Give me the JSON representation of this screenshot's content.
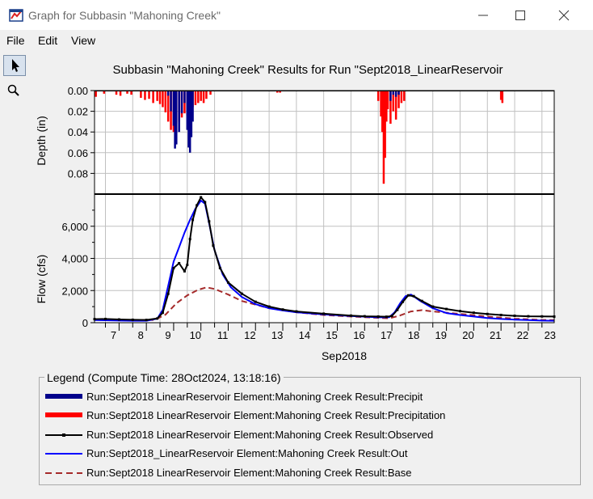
{
  "window": {
    "title": "Graph for Subbasin \"Mahoning Creek\""
  },
  "menu": {
    "items": [
      "File",
      "Edit",
      "View"
    ]
  },
  "toolbar": {
    "tools": [
      {
        "icon": "pointer-arrow-icon",
        "selected": true
      },
      {
        "icon": "zoom-magnifier-icon",
        "selected": false
      }
    ]
  },
  "chart_data": {
    "title": "Subbasin \"Mahoning Creek\" Results for Run \"Sept2018_LinearReservoir",
    "xlabel": "Sep2018",
    "x_ticks": [
      "7",
      "8",
      "9",
      "10",
      "11",
      "12",
      "13",
      "14",
      "15",
      "16",
      "17",
      "18",
      "19",
      "20",
      "21",
      "22",
      "23"
    ],
    "x_range": [
      6.6,
      23.45
    ],
    "grid": true,
    "colors": {
      "precip_excess": "#00008b",
      "precipitation": "#ff0000",
      "observed": "#000000",
      "outflow": "#0000ff",
      "baseflow": "#a52a2a"
    },
    "panels": [
      {
        "name": "depth",
        "type": "bar",
        "ylabel": "Depth (in)",
        "inverted": true,
        "ylim": [
          0,
          0.1
        ],
        "y_ticks": [
          "0.00",
          "0.02",
          "0.04",
          "0.06",
          "0.08"
        ],
        "y_tick_values": [
          0,
          0.02,
          0.04,
          0.06,
          0.08
        ],
        "bar_width_days": 0.0417,
        "series": [
          {
            "key": "precipitation",
            "x": [
              6.65,
              6.95,
              7.4,
              7.55,
              7.8,
              7.95,
              8.3,
              8.45,
              8.6,
              8.75,
              8.9,
              9.0,
              9.1,
              9.2,
              9.3,
              9.4,
              9.5,
              9.6,
              9.7,
              9.8,
              9.9,
              10.0,
              10.1,
              10.2,
              10.3,
              10.4,
              10.5,
              10.6,
              10.7,
              10.85,
              13.3,
              13.4,
              17.0,
              17.1,
              17.15,
              17.2,
              17.25,
              17.3,
              17.35,
              17.45,
              17.55,
              17.65,
              17.75,
              17.85,
              17.95,
              21.5,
              21.55
            ],
            "values": [
              0.006,
              0.003,
              0.004,
              0.005,
              0.003,
              0.004,
              0.007,
              0.009,
              0.008,
              0.012,
              0.01,
              0.013,
              0.016,
              0.021,
              0.03,
              0.038,
              0.04,
              0.032,
              0.03,
              0.026,
              0.022,
              0.024,
              0.018,
              0.016,
              0.014,
              0.012,
              0.01,
              0.012,
              0.008,
              0.004,
              0.002,
              0.002,
              0.01,
              0.025,
              0.04,
              0.09,
              0.065,
              0.03,
              0.018,
              0.032,
              0.02,
              0.028,
              0.017,
              0.012,
              0.01,
              0.009,
              0.012
            ]
          },
          {
            "key": "precip_excess",
            "x": [
              9.3,
              9.4,
              9.5,
              9.55,
              9.6,
              9.7,
              9.8,
              9.9,
              10.0,
              10.05,
              10.1,
              10.15,
              10.2,
              17.45,
              17.55,
              17.65,
              17.75
            ],
            "values": [
              0.005,
              0.02,
              0.034,
              0.056,
              0.052,
              0.04,
              0.022,
              0.012,
              0.038,
              0.055,
              0.06,
              0.045,
              0.03,
              0.01,
              0.004,
              0.006,
              0.004
            ]
          }
        ]
      },
      {
        "name": "flow",
        "type": "line",
        "ylabel": "Flow (cfs)",
        "ylim": [
          0,
          8000
        ],
        "y_ticks": [
          "0",
          "2,000",
          "4,000",
          "6,000"
        ],
        "y_tick_values": [
          0,
          2000,
          4000,
          6000
        ],
        "series": [
          {
            "key": "observed",
            "style": "solid-markers",
            "x": [
              6.6,
              7.0,
              7.5,
              8.0,
              8.5,
              8.9,
              9.1,
              9.3,
              9.5,
              9.7,
              9.9,
              10.0,
              10.1,
              10.2,
              10.35,
              10.5,
              10.65,
              10.8,
              10.95,
              11.2,
              11.5,
              12.0,
              12.5,
              13.0,
              13.5,
              14.0,
              15.0,
              16.0,
              16.5,
              17.0,
              17.3,
              17.5,
              17.7,
              17.9,
              18.1,
              18.3,
              18.6,
              19.0,
              19.5,
              20.0,
              20.5,
              21.0,
              21.5,
              22.0,
              22.5,
              23.0,
              23.45
            ],
            "values": [
              220,
              230,
              200,
              180,
              170,
              260,
              620,
              1800,
              3400,
              3700,
              3200,
              3600,
              5200,
              6400,
              7300,
              7800,
              7500,
              6300,
              4800,
              3400,
              2500,
              1800,
              1300,
              1000,
              820,
              700,
              560,
              440,
              400,
              380,
              370,
              420,
              800,
              1300,
              1700,
              1650,
              1350,
              1000,
              850,
              720,
              620,
              540,
              480,
              430,
              400,
              390,
              380
            ]
          },
          {
            "key": "outflow",
            "style": "solid",
            "x": [
              6.6,
              7.0,
              7.5,
              8.0,
              8.5,
              8.9,
              9.1,
              9.3,
              9.5,
              9.7,
              9.9,
              10.1,
              10.3,
              10.5,
              10.65,
              10.8,
              11.0,
              11.3,
              11.6,
              12.0,
              12.5,
              13.0,
              13.5,
              14.0,
              15.0,
              16.0,
              17.0,
              17.4,
              17.6,
              17.8,
              18.0,
              18.2,
              18.5,
              19.0,
              19.5,
              20.0,
              20.5,
              21.0,
              21.5,
              22.0,
              22.5,
              23.0,
              23.45
            ],
            "values": [
              160,
              150,
              130,
              120,
              120,
              250,
              800,
              2300,
              3800,
              4700,
              5600,
              6400,
              7100,
              7600,
              7400,
              6200,
              4500,
              3000,
              2200,
              1600,
              1150,
              900,
              760,
              650,
              520,
              420,
              330,
              340,
              650,
              1200,
              1650,
              1750,
              1400,
              900,
              600,
              480,
              380,
              290,
              230,
              190,
              160,
              130,
              120
            ]
          },
          {
            "key": "baseflow",
            "style": "dashed",
            "x": [
              6.6,
              8.0,
              8.8,
              9.2,
              9.6,
              10.0,
              10.4,
              10.7,
              11.0,
              11.5,
              12.0,
              13.0,
              14.0,
              15.0,
              16.0,
              17.0,
              17.4,
              17.8,
              18.2,
              18.6,
              19.0,
              20.0,
              21.0,
              22.0,
              23.0,
              23.45
            ],
            "values": [
              200,
              170,
              170,
              500,
              1200,
              1700,
              2050,
              2200,
              2100,
              1750,
              1350,
              900,
              650,
              480,
              380,
              300,
              270,
              450,
              700,
              780,
              700,
              550,
              380,
              250,
              170,
              160
            ]
          }
        ]
      }
    ],
    "legend": {
      "title": "Legend (Compute Time: 28Oct2024, 13:18:16)",
      "placement": "bottom",
      "entries": [
        {
          "key": "precip_excess",
          "label": "Run:Sept2018  LinearReservoir Element:Mahoning Creek Result:Precipit",
          "swatch": "thick-bar"
        },
        {
          "key": "precipitation",
          "label": "Run:Sept2018  LinearReservoir Element:Mahoning Creek Result:Precipitation",
          "swatch": "thick-bar"
        },
        {
          "key": "observed",
          "label": "Run:Sept2018  LinearReservoir Element:Mahoning Creek Result:Observed",
          "swatch": "line-marker"
        },
        {
          "key": "outflow",
          "label": "Run:Sept2018_LinearReservoir Element:Mahoning Creek Result:Out",
          "swatch": "line"
        },
        {
          "key": "baseflow",
          "label": "Run:Sept2018  LinearReservoir Element:Mahoning Creek Result:Base",
          "swatch": "dashed-line"
        }
      ]
    }
  }
}
